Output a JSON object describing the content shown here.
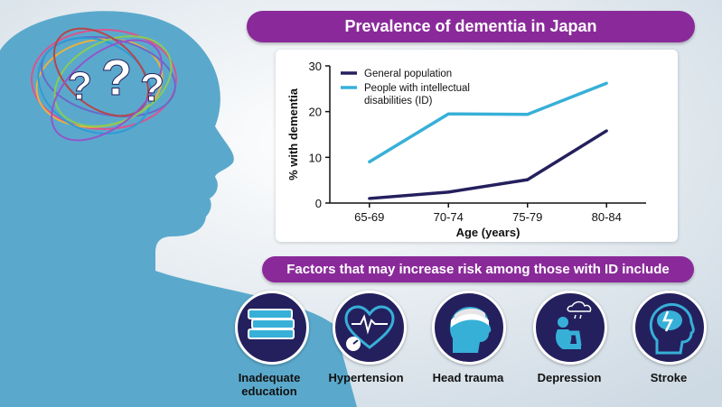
{
  "title": "Prevalence of dementia in Japan",
  "factors_heading": "Factors that may increase risk among those with ID include",
  "question_mark": "?",
  "factors": [
    {
      "label": "Inadequate education",
      "icon": "books-icon"
    },
    {
      "label": "Hypertension",
      "icon": "heart-pressure-icon"
    },
    {
      "label": "Head trauma",
      "icon": "bandaged-head-icon"
    },
    {
      "label": "Depression",
      "icon": "sad-person-icon"
    },
    {
      "label": "Stroke",
      "icon": "brain-stroke-icon"
    }
  ],
  "colors": {
    "accent": "#8a2a9a",
    "dark_navy": "#24205e",
    "light_blue": "#37b0d8",
    "silhouette": "#5aa9cc"
  },
  "chart_data": {
    "type": "line",
    "categories": [
      "65-69",
      "70-74",
      "75-79",
      "80-84"
    ],
    "series": [
      {
        "name": "General population",
        "color": "#24205e",
        "values": [
          1,
          2.4,
          5.1,
          15.8
        ]
      },
      {
        "name": "People with intellectual disabilities (ID)",
        "color": "#37b0d8",
        "values": [
          9,
          19.5,
          19.4,
          26.2
        ]
      }
    ],
    "xlabel": "Age (years)",
    "ylabel": "% with dementia",
    "ylim": [
      0,
      30
    ],
    "yticks": [
      0,
      10,
      20,
      30
    ],
    "grid": false,
    "legend": "top-left"
  }
}
